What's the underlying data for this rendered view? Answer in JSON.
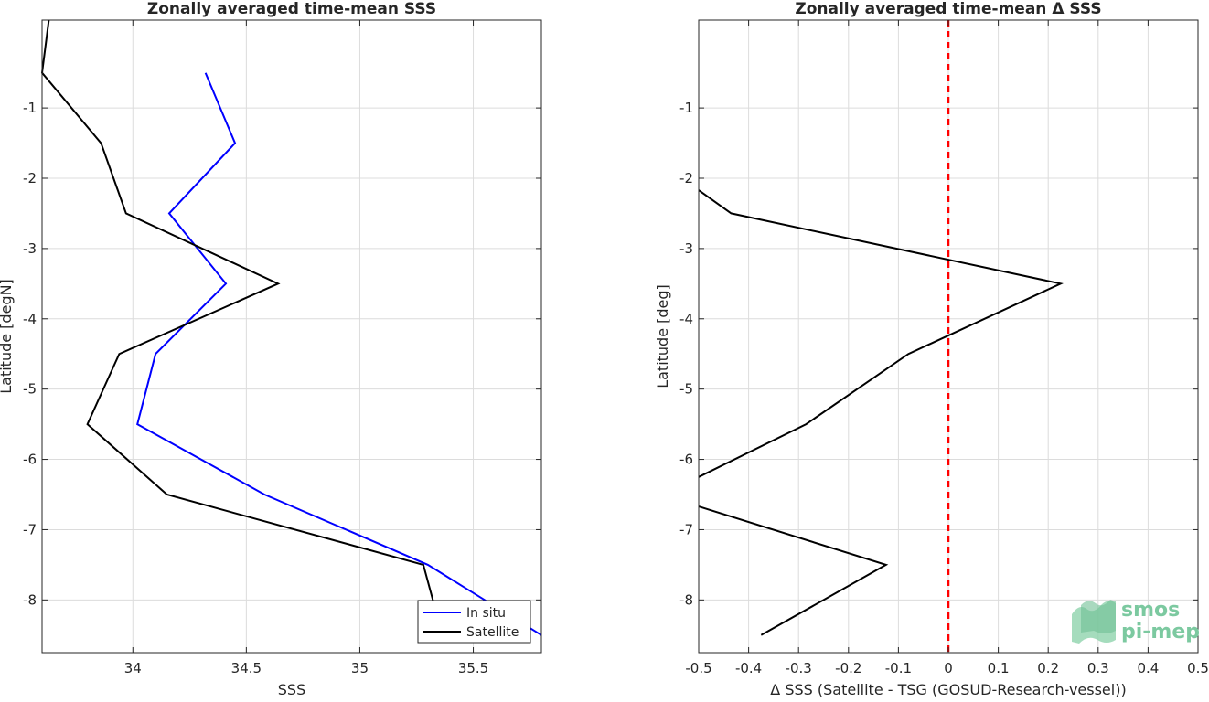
{
  "chart_data": [
    {
      "type": "line",
      "title": "Zonally averaged time-mean SSS",
      "xlabel": "SSS",
      "ylabel": "Latitude [degN]",
      "xlim": [
        33.6,
        35.8
      ],
      "ylim": [
        -8.75,
        0.25
      ],
      "xticks": [
        "34",
        "34.5",
        "35",
        "35.5"
      ],
      "yticks": [
        "-1",
        "-2",
        "-3",
        "-4",
        "-5",
        "-6",
        "-7",
        "-8"
      ],
      "grid": true,
      "legend": "bottom-right",
      "series": [
        {
          "name": "In situ",
          "color": "#0000ff",
          "points": [
            [
              34.32,
              -0.5
            ],
            [
              34.45,
              -1.5
            ],
            [
              34.16,
              -2.5
            ],
            [
              34.41,
              -3.5
            ],
            [
              34.1,
              -4.5
            ],
            [
              34.02,
              -5.5
            ],
            [
              34.58,
              -6.5
            ],
            [
              35.3,
              -7.5
            ],
            [
              35.8,
              -8.5
            ]
          ]
        },
        {
          "name": "Satellite",
          "color": "#000000",
          "points": [
            [
              33.63,
              0.25
            ],
            [
              33.6,
              -0.5
            ],
            [
              33.86,
              -1.5
            ],
            [
              33.97,
              -2.5
            ],
            [
              34.64,
              -3.5
            ],
            [
              33.94,
              -4.5
            ],
            [
              33.8,
              -5.5
            ],
            [
              34.15,
              -6.5
            ],
            [
              35.28,
              -7.5
            ],
            [
              35.33,
              -8.1
            ]
          ]
        }
      ]
    },
    {
      "type": "line",
      "title": "Zonally averaged time-mean Δ SSS",
      "xlabel": "Δ SSS (Satellite - TSG (GOSUD-Research-vessel))",
      "ylabel": "Latitude [deg]",
      "xlim": [
        -0.5,
        0.5
      ],
      "ylim": [
        -8.75,
        0.25
      ],
      "xticks": [
        "-0.5",
        "-0.4",
        "-0.3",
        "-0.2",
        "-0.1",
        "0",
        "0.1",
        "0.2",
        "0.3",
        "0.4",
        "0.5"
      ],
      "yticks": [
        "-1",
        "-2",
        "-3",
        "-4",
        "-5",
        "-6",
        "-7",
        "-8"
      ],
      "grid": true,
      "reference_line": {
        "x": 0,
        "color": "#ff0000",
        "style": "dashed"
      },
      "series": [
        {
          "color": "#000000",
          "segments": [
            [
              [
                -0.5,
                -2.17
              ],
              [
                -0.435,
                -2.5
              ],
              [
                0.225,
                -3.5
              ],
              [
                -0.08,
                -4.5
              ],
              [
                -0.285,
                -5.5
              ],
              [
                -0.5,
                -6.25
              ]
            ],
            [
              [
                -0.5,
                -6.67
              ],
              [
                -0.125,
                -7.5
              ],
              [
                -0.375,
                -8.5
              ]
            ]
          ]
        }
      ]
    }
  ],
  "watermark": {
    "line1": "smos",
    "line2": "pi-mep"
  }
}
